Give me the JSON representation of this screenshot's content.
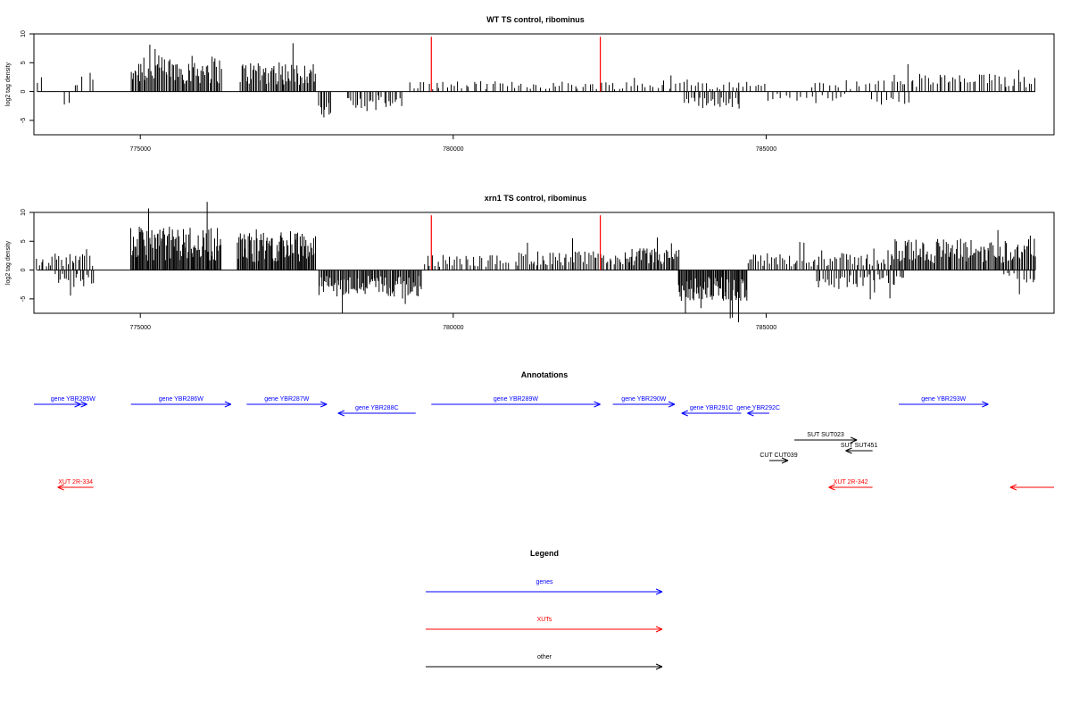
{
  "chart_data": [
    {
      "type": "bar",
      "title": "WT TS control, ribominus",
      "ylabel": "log2 tag density",
      "xlim": [
        773300,
        789600
      ],
      "ylim": [
        -7.5,
        10
      ],
      "yticks": [
        -5,
        0,
        5,
        10
      ],
      "xticks": [
        775000,
        780000,
        785000
      ],
      "xtick_labels": [
        "775000",
        "780000",
        "785000"
      ],
      "baseline": 0,
      "bar_color": "#000000",
      "marker_color": "#ff0000",
      "markers": [
        779650,
        782350
      ],
      "marker_top": 9.5,
      "segments": [
        {
          "start": 773350,
          "end": 773400,
          "step": 50,
          "mean": 2.0,
          "sign": 1
        },
        {
          "start": 773800,
          "end": 773850,
          "step": 50,
          "mean": 1.5,
          "sign": -1
        },
        {
          "start": 773950,
          "end": 774050,
          "step": 50,
          "mean": 1.8,
          "sign": 1
        },
        {
          "start": 774200,
          "end": 774250,
          "step": 50,
          "mean": 2.5,
          "sign": 1
        },
        {
          "start": 774850,
          "end": 776300,
          "step": 20,
          "mean": 3.8,
          "sign": 1
        },
        {
          "start": 776600,
          "end": 777800,
          "step": 20,
          "mean": 3.2,
          "sign": 1
        },
        {
          "start": 777850,
          "end": 778050,
          "step": 25,
          "mean": 2.8,
          "sign": -1
        },
        {
          "start": 778300,
          "end": 779200,
          "step": 35,
          "mean": 1.8,
          "sign": -1
        },
        {
          "start": 779300,
          "end": 785000,
          "step": 60,
          "mean": 1.1,
          "sign": 1
        },
        {
          "start": 783700,
          "end": 784600,
          "step": 35,
          "mean": 1.8,
          "sign": -1
        },
        {
          "start": 785000,
          "end": 786300,
          "step": 80,
          "mean": 1.0,
          "sign": -1
        },
        {
          "start": 785700,
          "end": 786900,
          "step": 80,
          "mean": 1.2,
          "sign": 1
        },
        {
          "start": 786700,
          "end": 787300,
          "step": 70,
          "mean": 1.6,
          "sign": -1
        },
        {
          "start": 787000,
          "end": 789300,
          "step": 45,
          "mean": 1.9,
          "sign": 1
        }
      ]
    },
    {
      "type": "bar",
      "title": "xrn1 TS control, ribominus",
      "ylabel": "log2 tag density",
      "xlim": [
        773300,
        789600
      ],
      "ylim": [
        -7.5,
        10
      ],
      "yticks": [
        -5,
        0,
        5,
        10
      ],
      "xticks": [
        775000,
        780000,
        785000
      ],
      "xtick_labels": [
        "775000",
        "780000",
        "785000"
      ],
      "baseline": 0,
      "bar_color": "#000000",
      "marker_color": "#ff0000",
      "markers": [
        779650,
        782350
      ],
      "marker_top": 9.5,
      "segments": [
        {
          "start": 773350,
          "end": 774250,
          "step": 35,
          "mean": 1.8,
          "sign": 1
        },
        {
          "start": 773650,
          "end": 774250,
          "step": 35,
          "mean": 1.8,
          "sign": -1
        },
        {
          "start": 774850,
          "end": 776300,
          "step": 15,
          "mean": 4.6,
          "sign": 1
        },
        {
          "start": 776550,
          "end": 777800,
          "step": 15,
          "mean": 4.0,
          "sign": 1
        },
        {
          "start": 777850,
          "end": 779500,
          "step": 18,
          "mean": 2.8,
          "sign": -1
        },
        {
          "start": 779550,
          "end": 780900,
          "step": 40,
          "mean": 1.6,
          "sign": 1
        },
        {
          "start": 781000,
          "end": 782800,
          "step": 30,
          "mean": 2.0,
          "sign": 1
        },
        {
          "start": 782800,
          "end": 783600,
          "step": 20,
          "mean": 2.3,
          "sign": 1
        },
        {
          "start": 783600,
          "end": 784700,
          "step": 15,
          "mean": 3.3,
          "sign": -1
        },
        {
          "start": 784700,
          "end": 787000,
          "step": 35,
          "mean": 1.8,
          "sign": 1
        },
        {
          "start": 785800,
          "end": 787200,
          "step": 35,
          "mean": 1.9,
          "sign": -1
        },
        {
          "start": 787000,
          "end": 789300,
          "step": 20,
          "mean": 3.3,
          "sign": 1
        },
        {
          "start": 788800,
          "end": 789300,
          "step": 50,
          "mean": 1.5,
          "sign": -1
        }
      ]
    }
  ],
  "annotations": {
    "title": "Annotations",
    "features": [
      {
        "label": "",
        "start": 773300,
        "end": 774050,
        "dir": "+",
        "color": "#0000ff",
        "row": 0
      },
      {
        "label": "gene YBR285W",
        "start": 773700,
        "end": 774150,
        "dir": "+",
        "color": "#0000ff",
        "row": 0
      },
      {
        "label": "gene YBR286W",
        "start": 774850,
        "end": 776450,
        "dir": "+",
        "color": "#0000ff",
        "row": 0
      },
      {
        "label": "gene YBR287W",
        "start": 776700,
        "end": 777980,
        "dir": "+",
        "color": "#0000ff",
        "row": 0
      },
      {
        "label": "gene YBR288C",
        "start": 778160,
        "end": 779400,
        "dir": "-",
        "color": "#0000ff",
        "row": 1
      },
      {
        "label": "gene YBR289W",
        "start": 779650,
        "end": 782350,
        "dir": "+",
        "color": "#0000ff",
        "row": 0
      },
      {
        "label": "gene YBR290W",
        "start": 782550,
        "end": 783540,
        "dir": "+",
        "color": "#0000ff",
        "row": 0
      },
      {
        "label": "gene YBR291C",
        "start": 783650,
        "end": 784600,
        "dir": "-",
        "color": "#0000ff",
        "row": 1
      },
      {
        "label": "gene YBR292C",
        "start": 784700,
        "end": 785050,
        "dir": "-",
        "color": "#0000ff",
        "row": 1
      },
      {
        "label": "gene YBR293W",
        "start": 787120,
        "end": 788550,
        "dir": "+",
        "color": "#0000ff",
        "row": 0
      },
      {
        "label": "SUT SUT023",
        "start": 785450,
        "end": 786450,
        "dir": "+",
        "color": "#000000",
        "row": 3
      },
      {
        "label": "SUT SUT451",
        "start": 786270,
        "end": 786700,
        "dir": "-",
        "color": "#000000",
        "row": 4
      },
      {
        "label": "CUT CUT039",
        "start": 785050,
        "end": 785350,
        "dir": "+",
        "color": "#000000",
        "row": 5
      },
      {
        "label": "XUT 2R-334",
        "start": 773680,
        "end": 774250,
        "dir": "-",
        "color": "#ff0000",
        "row": 7
      },
      {
        "label": "XUT 2R-342",
        "start": 786000,
        "end": 786700,
        "dir": "-",
        "color": "#ff0000",
        "row": 7
      },
      {
        "label": "",
        "start": 788900,
        "end": 789600,
        "dir": "-",
        "color": "#ff0000",
        "row": 7
      }
    ]
  },
  "legend": {
    "title": "Legend",
    "items": [
      {
        "label": "genes",
        "color": "#0000ff"
      },
      {
        "label": "XUTs",
        "color": "#ff0000"
      },
      {
        "label": "other",
        "color": "#000000"
      }
    ]
  }
}
